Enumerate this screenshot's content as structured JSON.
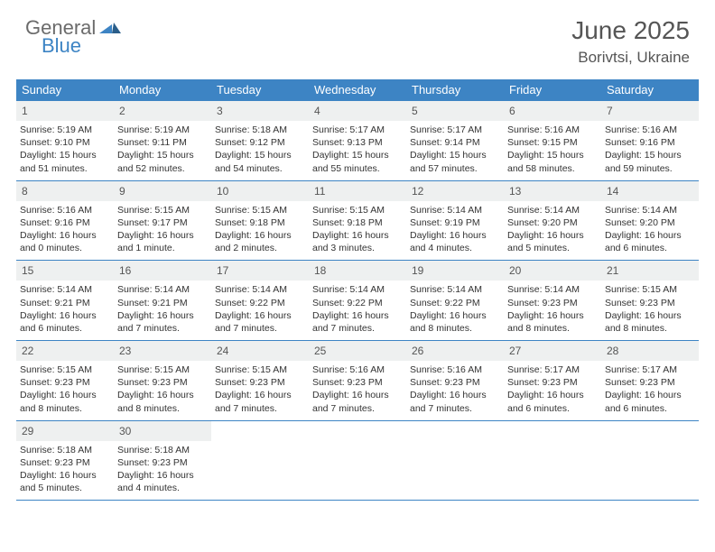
{
  "brand": {
    "word1": "General",
    "word2": "Blue"
  },
  "title": {
    "month": "June 2025",
    "location": "Borivtsi, Ukraine"
  },
  "colors": {
    "header_bg": "#3d84c4",
    "daynum_bg": "#eef0f0",
    "rule": "#3d84c4",
    "text": "#333333",
    "title_text": "#555555"
  },
  "weekdays": [
    "Sunday",
    "Monday",
    "Tuesday",
    "Wednesday",
    "Thursday",
    "Friday",
    "Saturday"
  ],
  "weeks": [
    [
      {
        "n": "1",
        "sr": "Sunrise: 5:19 AM",
        "ss": "Sunset: 9:10 PM",
        "d1": "Daylight: 15 hours",
        "d2": "and 51 minutes."
      },
      {
        "n": "2",
        "sr": "Sunrise: 5:19 AM",
        "ss": "Sunset: 9:11 PM",
        "d1": "Daylight: 15 hours",
        "d2": "and 52 minutes."
      },
      {
        "n": "3",
        "sr": "Sunrise: 5:18 AM",
        "ss": "Sunset: 9:12 PM",
        "d1": "Daylight: 15 hours",
        "d2": "and 54 minutes."
      },
      {
        "n": "4",
        "sr": "Sunrise: 5:17 AM",
        "ss": "Sunset: 9:13 PM",
        "d1": "Daylight: 15 hours",
        "d2": "and 55 minutes."
      },
      {
        "n": "5",
        "sr": "Sunrise: 5:17 AM",
        "ss": "Sunset: 9:14 PM",
        "d1": "Daylight: 15 hours",
        "d2": "and 57 minutes."
      },
      {
        "n": "6",
        "sr": "Sunrise: 5:16 AM",
        "ss": "Sunset: 9:15 PM",
        "d1": "Daylight: 15 hours",
        "d2": "and 58 minutes."
      },
      {
        "n": "7",
        "sr": "Sunrise: 5:16 AM",
        "ss": "Sunset: 9:16 PM",
        "d1": "Daylight: 15 hours",
        "d2": "and 59 minutes."
      }
    ],
    [
      {
        "n": "8",
        "sr": "Sunrise: 5:16 AM",
        "ss": "Sunset: 9:16 PM",
        "d1": "Daylight: 16 hours",
        "d2": "and 0 minutes."
      },
      {
        "n": "9",
        "sr": "Sunrise: 5:15 AM",
        "ss": "Sunset: 9:17 PM",
        "d1": "Daylight: 16 hours",
        "d2": "and 1 minute."
      },
      {
        "n": "10",
        "sr": "Sunrise: 5:15 AM",
        "ss": "Sunset: 9:18 PM",
        "d1": "Daylight: 16 hours",
        "d2": "and 2 minutes."
      },
      {
        "n": "11",
        "sr": "Sunrise: 5:15 AM",
        "ss": "Sunset: 9:18 PM",
        "d1": "Daylight: 16 hours",
        "d2": "and 3 minutes."
      },
      {
        "n": "12",
        "sr": "Sunrise: 5:14 AM",
        "ss": "Sunset: 9:19 PM",
        "d1": "Daylight: 16 hours",
        "d2": "and 4 minutes."
      },
      {
        "n": "13",
        "sr": "Sunrise: 5:14 AM",
        "ss": "Sunset: 9:20 PM",
        "d1": "Daylight: 16 hours",
        "d2": "and 5 minutes."
      },
      {
        "n": "14",
        "sr": "Sunrise: 5:14 AM",
        "ss": "Sunset: 9:20 PM",
        "d1": "Daylight: 16 hours",
        "d2": "and 6 minutes."
      }
    ],
    [
      {
        "n": "15",
        "sr": "Sunrise: 5:14 AM",
        "ss": "Sunset: 9:21 PM",
        "d1": "Daylight: 16 hours",
        "d2": "and 6 minutes."
      },
      {
        "n": "16",
        "sr": "Sunrise: 5:14 AM",
        "ss": "Sunset: 9:21 PM",
        "d1": "Daylight: 16 hours",
        "d2": "and 7 minutes."
      },
      {
        "n": "17",
        "sr": "Sunrise: 5:14 AM",
        "ss": "Sunset: 9:22 PM",
        "d1": "Daylight: 16 hours",
        "d2": "and 7 minutes."
      },
      {
        "n": "18",
        "sr": "Sunrise: 5:14 AM",
        "ss": "Sunset: 9:22 PM",
        "d1": "Daylight: 16 hours",
        "d2": "and 7 minutes."
      },
      {
        "n": "19",
        "sr": "Sunrise: 5:14 AM",
        "ss": "Sunset: 9:22 PM",
        "d1": "Daylight: 16 hours",
        "d2": "and 8 minutes."
      },
      {
        "n": "20",
        "sr": "Sunrise: 5:14 AM",
        "ss": "Sunset: 9:23 PM",
        "d1": "Daylight: 16 hours",
        "d2": "and 8 minutes."
      },
      {
        "n": "21",
        "sr": "Sunrise: 5:15 AM",
        "ss": "Sunset: 9:23 PM",
        "d1": "Daylight: 16 hours",
        "d2": "and 8 minutes."
      }
    ],
    [
      {
        "n": "22",
        "sr": "Sunrise: 5:15 AM",
        "ss": "Sunset: 9:23 PM",
        "d1": "Daylight: 16 hours",
        "d2": "and 8 minutes."
      },
      {
        "n": "23",
        "sr": "Sunrise: 5:15 AM",
        "ss": "Sunset: 9:23 PM",
        "d1": "Daylight: 16 hours",
        "d2": "and 8 minutes."
      },
      {
        "n": "24",
        "sr": "Sunrise: 5:15 AM",
        "ss": "Sunset: 9:23 PM",
        "d1": "Daylight: 16 hours",
        "d2": "and 7 minutes."
      },
      {
        "n": "25",
        "sr": "Sunrise: 5:16 AM",
        "ss": "Sunset: 9:23 PM",
        "d1": "Daylight: 16 hours",
        "d2": "and 7 minutes."
      },
      {
        "n": "26",
        "sr": "Sunrise: 5:16 AM",
        "ss": "Sunset: 9:23 PM",
        "d1": "Daylight: 16 hours",
        "d2": "and 7 minutes."
      },
      {
        "n": "27",
        "sr": "Sunrise: 5:17 AM",
        "ss": "Sunset: 9:23 PM",
        "d1": "Daylight: 16 hours",
        "d2": "and 6 minutes."
      },
      {
        "n": "28",
        "sr": "Sunrise: 5:17 AM",
        "ss": "Sunset: 9:23 PM",
        "d1": "Daylight: 16 hours",
        "d2": "and 6 minutes."
      }
    ],
    [
      {
        "n": "29",
        "sr": "Sunrise: 5:18 AM",
        "ss": "Sunset: 9:23 PM",
        "d1": "Daylight: 16 hours",
        "d2": "and 5 minutes."
      },
      {
        "n": "30",
        "sr": "Sunrise: 5:18 AM",
        "ss": "Sunset: 9:23 PM",
        "d1": "Daylight: 16 hours",
        "d2": "and 4 minutes."
      },
      null,
      null,
      null,
      null,
      null
    ]
  ]
}
